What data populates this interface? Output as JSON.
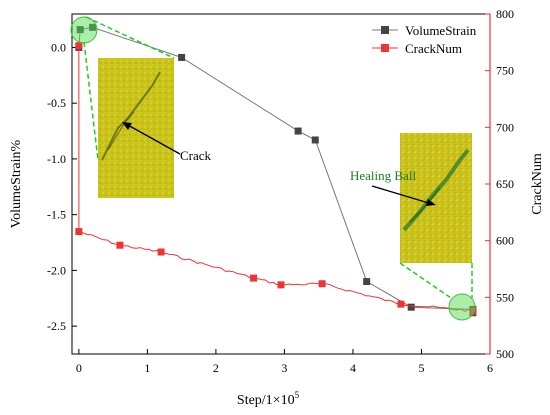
{
  "chart_data": {
    "type": "line",
    "xlabel": "Step/1×10",
    "xlabel_exp": "5",
    "ylabel_left": "VolumeStrain%",
    "ylabel_right": "CrackNum",
    "xlim": [
      -0.1,
      6
    ],
    "ylim_left": [
      -2.75,
      0.3
    ],
    "ylim_right": [
      500,
      800
    ],
    "x_ticks": [
      0,
      1,
      2,
      3,
      4,
      5,
      6
    ],
    "x_tick_labels": [
      "0",
      "1",
      "2",
      "3",
      "4",
      "5",
      "6"
    ],
    "y_left_ticks": [
      0.0,
      -0.5,
      -1.0,
      -1.5,
      -2.0,
      -2.5
    ],
    "y_left_tick_labels": [
      "0.0",
      "-0.5",
      "-1.0",
      "-1.5",
      "-2.0",
      "-2.5"
    ],
    "y_right_ticks": [
      500,
      550,
      600,
      650,
      700,
      750,
      800
    ],
    "y_right_tick_labels": [
      "500",
      "550",
      "600",
      "650",
      "700",
      "750",
      "800"
    ],
    "grid": false,
    "legend_position": "top-right",
    "series": [
      {
        "name": "VolumeStrain",
        "axis": "left",
        "color": "#777777",
        "marker_color": "#444444",
        "marker": "square",
        "points": [
          [
            0.0,
            0.0
          ],
          [
            0.02,
            0.16
          ],
          [
            0.2,
            0.18
          ],
          [
            1.5,
            -0.09
          ],
          [
            3.2,
            -0.75
          ],
          [
            3.45,
            -0.83
          ],
          [
            4.2,
            -2.1
          ],
          [
            4.85,
            -2.33
          ],
          [
            5.75,
            -2.35
          ],
          [
            5.75,
            -2.38
          ]
        ]
      },
      {
        "name": "CrackNum",
        "axis": "right",
        "color": "#ee3333",
        "marker_color": "#ee3333",
        "marker": "square",
        "points": [
          [
            0.0,
            772
          ],
          [
            0.0,
            608
          ],
          [
            0.6,
            596
          ],
          [
            1.2,
            590
          ],
          [
            2.55,
            567
          ],
          [
            2.95,
            561
          ],
          [
            3.55,
            562
          ],
          [
            4.7,
            544
          ],
          [
            5.75,
            538
          ]
        ],
        "noisy_line": true
      }
    ],
    "annotations": [
      {
        "text": "Crack",
        "color": "#000000"
      },
      {
        "text": "Healing Ball",
        "color": "#1e7a1e"
      }
    ]
  }
}
